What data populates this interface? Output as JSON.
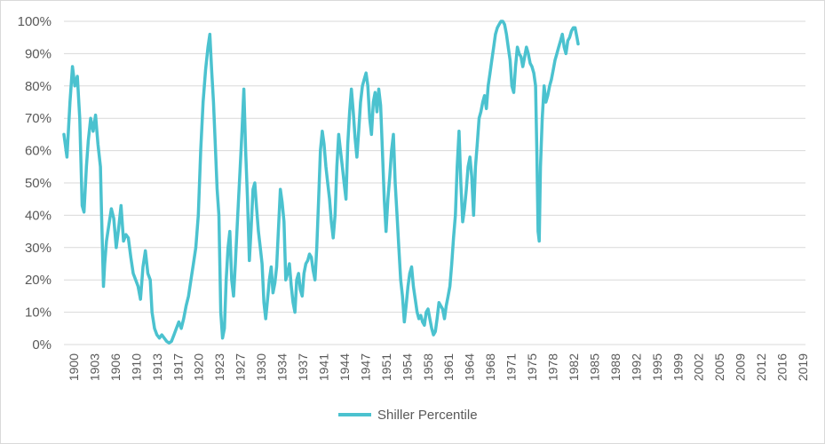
{
  "chart_data": {
    "type": "line",
    "title": "",
    "xlabel": "",
    "ylabel": "",
    "ylim": [
      0,
      100
    ],
    "xlim": [
      1900,
      2022
    ],
    "y_ticks": [
      "0%",
      "10%",
      "20%",
      "30%",
      "40%",
      "50%",
      "60%",
      "70%",
      "80%",
      "90%",
      "100%"
    ],
    "x_ticks": [
      "1900",
      "1903",
      "1906",
      "1910",
      "1913",
      "1917",
      "1920",
      "1923",
      "1927",
      "1930",
      "1934",
      "1937",
      "1941",
      "1944",
      "1947",
      "1951",
      "1954",
      "1958",
      "1961",
      "1964",
      "1968",
      "1971",
      "1975",
      "1978",
      "1982",
      "1985",
      "1988",
      "1992",
      "1995",
      "1999",
      "2002",
      "2005",
      "2009",
      "2012",
      "2016",
      "2019"
    ],
    "legend_position": "bottom",
    "grid": true,
    "color": "#4bc2cf",
    "series": [
      {
        "name": "Shiller Percentile",
        "points": [
          [
            1900.0,
            65
          ],
          [
            1900.5,
            58
          ],
          [
            1901.0,
            75
          ],
          [
            1901.4,
            86
          ],
          [
            1901.8,
            80
          ],
          [
            1902.2,
            83
          ],
          [
            1902.6,
            70
          ],
          [
            1903.0,
            43
          ],
          [
            1903.3,
            41
          ],
          [
            1903.7,
            55
          ],
          [
            1904.0,
            63
          ],
          [
            1904.4,
            70
          ],
          [
            1904.8,
            66
          ],
          [
            1905.2,
            71
          ],
          [
            1905.6,
            62
          ],
          [
            1906.0,
            55
          ],
          [
            1906.2,
            40
          ],
          [
            1906.5,
            18
          ],
          [
            1906.7,
            25
          ],
          [
            1907.0,
            32
          ],
          [
            1907.4,
            37
          ],
          [
            1907.8,
            42
          ],
          [
            1908.2,
            39
          ],
          [
            1908.6,
            30
          ],
          [
            1909.0,
            36
          ],
          [
            1909.4,
            43
          ],
          [
            1909.8,
            32
          ],
          [
            1910.2,
            34
          ],
          [
            1910.6,
            33
          ],
          [
            1911.0,
            27
          ],
          [
            1911.4,
            22
          ],
          [
            1911.8,
            20
          ],
          [
            1912.2,
            18
          ],
          [
            1912.6,
            14
          ],
          [
            1913.0,
            24
          ],
          [
            1913.4,
            29
          ],
          [
            1913.8,
            22
          ],
          [
            1914.2,
            20
          ],
          [
            1914.5,
            10
          ],
          [
            1914.9,
            5
          ],
          [
            1915.3,
            3
          ],
          [
            1915.7,
            2
          ],
          [
            1916.1,
            3
          ],
          [
            1916.5,
            2
          ],
          [
            1916.9,
            1
          ],
          [
            1917.3,
            0.5
          ],
          [
            1917.7,
            1
          ],
          [
            1918.1,
            3
          ],
          [
            1918.5,
            5
          ],
          [
            1918.9,
            7
          ],
          [
            1919.3,
            5
          ],
          [
            1919.7,
            8
          ],
          [
            1920.1,
            12
          ],
          [
            1920.5,
            15
          ],
          [
            1920.9,
            20
          ],
          [
            1921.3,
            25
          ],
          [
            1921.7,
            30
          ],
          [
            1922.1,
            40
          ],
          [
            1922.5,
            60
          ],
          [
            1922.9,
            75
          ],
          [
            1923.3,
            85
          ],
          [
            1923.7,
            92
          ],
          [
            1924.0,
            96
          ],
          [
            1924.3,
            85
          ],
          [
            1924.6,
            75
          ],
          [
            1924.9,
            62
          ],
          [
            1925.2,
            48
          ],
          [
            1925.5,
            40
          ],
          [
            1925.8,
            10
          ],
          [
            1926.1,
            2
          ],
          [
            1926.4,
            5
          ],
          [
            1926.7,
            20
          ],
          [
            1927.0,
            30
          ],
          [
            1927.3,
            35
          ],
          [
            1927.6,
            20
          ],
          [
            1927.9,
            15
          ],
          [
            1928.2,
            25
          ],
          [
            1928.6,
            40
          ],
          [
            1929.0,
            55
          ],
          [
            1929.3,
            66
          ],
          [
            1929.6,
            79
          ],
          [
            1929.9,
            60
          ],
          [
            1930.2,
            45
          ],
          [
            1930.5,
            26
          ],
          [
            1930.8,
            36
          ],
          [
            1931.1,
            48
          ],
          [
            1931.4,
            50
          ],
          [
            1931.7,
            42
          ],
          [
            1932.0,
            35
          ],
          [
            1932.3,
            30
          ],
          [
            1932.6,
            25
          ],
          [
            1932.9,
            13
          ],
          [
            1933.2,
            8
          ],
          [
            1933.5,
            14
          ],
          [
            1933.8,
            20
          ],
          [
            1934.1,
            24
          ],
          [
            1934.4,
            16
          ],
          [
            1934.7,
            19
          ],
          [
            1935.0,
            24
          ],
          [
            1935.3,
            36
          ],
          [
            1935.6,
            48
          ],
          [
            1935.9,
            44
          ],
          [
            1936.2,
            38
          ],
          [
            1936.5,
            20
          ],
          [
            1936.8,
            22
          ],
          [
            1937.1,
            25
          ],
          [
            1937.4,
            18
          ],
          [
            1937.7,
            13
          ],
          [
            1938.0,
            10
          ],
          [
            1938.3,
            20
          ],
          [
            1938.6,
            22
          ],
          [
            1938.9,
            17
          ],
          [
            1939.2,
            15
          ],
          [
            1939.5,
            22
          ],
          [
            1939.8,
            25
          ],
          [
            1940.1,
            26
          ],
          [
            1940.4,
            28
          ],
          [
            1940.7,
            27
          ],
          [
            1941.0,
            23
          ],
          [
            1941.3,
            20
          ],
          [
            1941.6,
            30
          ],
          [
            1941.9,
            45
          ],
          [
            1942.2,
            60
          ],
          [
            1942.5,
            66
          ],
          [
            1942.8,
            62
          ],
          [
            1943.1,
            55
          ],
          [
            1943.4,
            50
          ],
          [
            1943.7,
            45
          ],
          [
            1944.0,
            38
          ],
          [
            1944.3,
            33
          ],
          [
            1944.6,
            40
          ],
          [
            1944.9,
            55
          ],
          [
            1945.2,
            65
          ],
          [
            1945.5,
            60
          ],
          [
            1945.8,
            55
          ],
          [
            1946.1,
            50
          ],
          [
            1946.4,
            45
          ],
          [
            1946.7,
            62
          ],
          [
            1947.0,
            72
          ],
          [
            1947.3,
            79
          ],
          [
            1947.6,
            72
          ],
          [
            1947.9,
            64
          ],
          [
            1948.2,
            58
          ],
          [
            1948.5,
            66
          ],
          [
            1948.8,
            75
          ],
          [
            1949.1,
            80
          ],
          [
            1949.4,
            82
          ],
          [
            1949.7,
            84
          ],
          [
            1950.0,
            80
          ],
          [
            1950.3,
            70
          ],
          [
            1950.6,
            65
          ],
          [
            1950.9,
            75
          ],
          [
            1951.2,
            78
          ],
          [
            1951.5,
            72
          ],
          [
            1951.8,
            79
          ],
          [
            1952.1,
            74
          ],
          [
            1952.4,
            60
          ],
          [
            1952.7,
            45
          ],
          [
            1953.0,
            35
          ],
          [
            1953.3,
            45
          ],
          [
            1953.6,
            52
          ],
          [
            1953.9,
            60
          ],
          [
            1954.2,
            65
          ],
          [
            1954.5,
            50
          ],
          [
            1954.8,
            40
          ],
          [
            1955.1,
            30
          ],
          [
            1955.4,
            20
          ],
          [
            1955.7,
            15
          ],
          [
            1956.0,
            7
          ],
          [
            1956.3,
            12
          ],
          [
            1956.6,
            18
          ],
          [
            1956.9,
            22
          ],
          [
            1957.2,
            24
          ],
          [
            1957.5,
            18
          ],
          [
            1957.8,
            14
          ],
          [
            1958.1,
            10
          ],
          [
            1958.4,
            8
          ],
          [
            1958.7,
            9
          ],
          [
            1959.0,
            7
          ],
          [
            1959.3,
            6
          ],
          [
            1959.6,
            10
          ],
          [
            1959.9,
            11
          ],
          [
            1960.2,
            8
          ],
          [
            1960.5,
            5
          ],
          [
            1960.8,
            3
          ],
          [
            1961.1,
            4
          ],
          [
            1961.4,
            8
          ],
          [
            1961.7,
            13
          ],
          [
            1962.0,
            12
          ],
          [
            1962.3,
            11
          ],
          [
            1962.6,
            8
          ],
          [
            1962.9,
            12
          ],
          [
            1963.2,
            15
          ],
          [
            1963.5,
            18
          ],
          [
            1963.8,
            25
          ],
          [
            1964.1,
            33
          ],
          [
            1964.4,
            40
          ],
          [
            1964.7,
            55
          ],
          [
            1965.0,
            66
          ],
          [
            1965.3,
            50
          ],
          [
            1965.6,
            38
          ],
          [
            1965.9,
            42
          ],
          [
            1966.2,
            48
          ],
          [
            1966.5,
            55
          ],
          [
            1966.8,
            58
          ],
          [
            1967.1,
            52
          ],
          [
            1967.4,
            40
          ],
          [
            1967.7,
            55
          ],
          [
            1968.0,
            62
          ],
          [
            1968.3,
            70
          ],
          [
            1968.6,
            72
          ],
          [
            1968.9,
            75
          ],
          [
            1969.2,
            77
          ],
          [
            1969.5,
            73
          ],
          [
            1969.8,
            80
          ],
          [
            1970.1,
            84
          ],
          [
            1970.4,
            88
          ],
          [
            1970.7,
            92
          ],
          [
            1971.0,
            96
          ],
          [
            1971.3,
            98
          ],
          [
            1971.6,
            99
          ],
          [
            1971.9,
            100
          ],
          [
            1972.2,
            100
          ],
          [
            1972.5,
            99
          ],
          [
            1972.8,
            96
          ],
          [
            1973.1,
            92
          ],
          [
            1973.4,
            88
          ],
          [
            1973.7,
            80
          ],
          [
            1974.0,
            78
          ],
          [
            1974.3,
            86
          ],
          [
            1974.6,
            92
          ],
          [
            1974.9,
            90
          ],
          [
            1975.2,
            89
          ],
          [
            1975.5,
            86
          ],
          [
            1975.8,
            89
          ],
          [
            1976.1,
            92
          ],
          [
            1976.4,
            90
          ],
          [
            1976.7,
            87
          ],
          [
            1977.0,
            86
          ],
          [
            1977.3,
            84
          ],
          [
            1977.6,
            80
          ],
          [
            1977.8,
            60
          ],
          [
            1978.0,
            35
          ],
          [
            1978.2,
            32
          ],
          [
            1978.4,
            55
          ],
          [
            1978.7,
            70
          ],
          [
            1979.0,
            80
          ],
          [
            1979.3,
            75
          ],
          [
            1979.6,
            77
          ],
          [
            1979.9,
            80
          ],
          [
            1980.2,
            82
          ],
          [
            1980.5,
            85
          ],
          [
            1980.8,
            88
          ],
          [
            1981.1,
            90
          ],
          [
            1981.4,
            92
          ],
          [
            1981.7,
            94
          ],
          [
            1982.0,
            96
          ],
          [
            1982.3,
            92
          ],
          [
            1982.6,
            90
          ],
          [
            1982.9,
            94
          ],
          [
            1983.2,
            95
          ],
          [
            1983.5,
            97
          ],
          [
            1983.8,
            98
          ],
          [
            1984.1,
            98
          ],
          [
            1984.4,
            95
          ],
          [
            1984.6,
            93
          ]
        ]
      }
    ]
  }
}
